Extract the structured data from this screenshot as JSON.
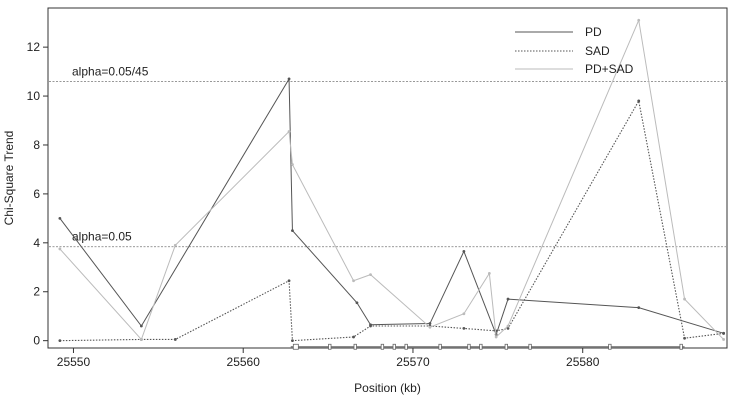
{
  "chart_data": {
    "type": "line",
    "xlabel": "Position (kb)",
    "ylabel": "Chi-Square Trend",
    "xlim": [
      25548.5,
      25588.5
    ],
    "ylim": [
      -0.3,
      13.6
    ],
    "xticks": [
      25550,
      25560,
      25570,
      25580
    ],
    "yticks": [
      0,
      2,
      4,
      6,
      8,
      10,
      12
    ],
    "legend_position": "top-right",
    "reference_lines": [
      {
        "label": "alpha=0.05/45",
        "y": 10.6
      },
      {
        "label": "alpha=0.05",
        "y": 3.84
      }
    ],
    "series": [
      {
        "name": "PD",
        "color": "#555555",
        "dash": "solid",
        "x": [
          25549.2,
          25554.0,
          25562.7,
          25562.9,
          25566.7,
          25567.5,
          25571.0,
          25573.0,
          25574.9,
          25575.6,
          25583.3,
          25588.3
        ],
        "y": [
          5.0,
          0.6,
          10.7,
          4.5,
          1.55,
          0.65,
          0.7,
          3.65,
          0.25,
          1.7,
          1.35,
          0.3
        ]
      },
      {
        "name": "SAD",
        "color": "#555555",
        "dash": "dotted",
        "x": [
          25549.2,
          25554.0,
          25556.0,
          25562.7,
          25562.9,
          25566.5,
          25567.5,
          25571.0,
          25573.0,
          25574.9,
          25575.6,
          25583.3,
          25586.0,
          25588.3
        ],
        "y": [
          0.0,
          0.05,
          0.05,
          2.45,
          0.0,
          0.15,
          0.6,
          0.6,
          0.5,
          0.4,
          0.5,
          9.8,
          0.1,
          0.3
        ]
      },
      {
        "name": "PD+SAD",
        "color": "#bbbbbb",
        "dash": "solid",
        "x": [
          25549.2,
          25554.0,
          25556.0,
          25562.7,
          25562.9,
          25566.5,
          25567.5,
          25571.0,
          25573.0,
          25574.5,
          25574.9,
          25575.6,
          25583.3,
          25586.0,
          25588.3
        ],
        "y": [
          3.75,
          0.05,
          3.9,
          8.55,
          7.2,
          2.45,
          2.7,
          0.55,
          1.1,
          2.75,
          0.15,
          0.6,
          13.1,
          1.7,
          0.05
        ]
      }
    ],
    "gene_track": {
      "y": -0.25,
      "x_start": 25562.8,
      "x_end": 25586.0,
      "exons": [
        25563.1,
        25565.1,
        25566.6,
        25568.2,
        25568.9,
        25569.6,
        25571.6,
        25573.3,
        25574.0,
        25575.5,
        25576.9,
        25581.6,
        25585.8
      ]
    }
  }
}
